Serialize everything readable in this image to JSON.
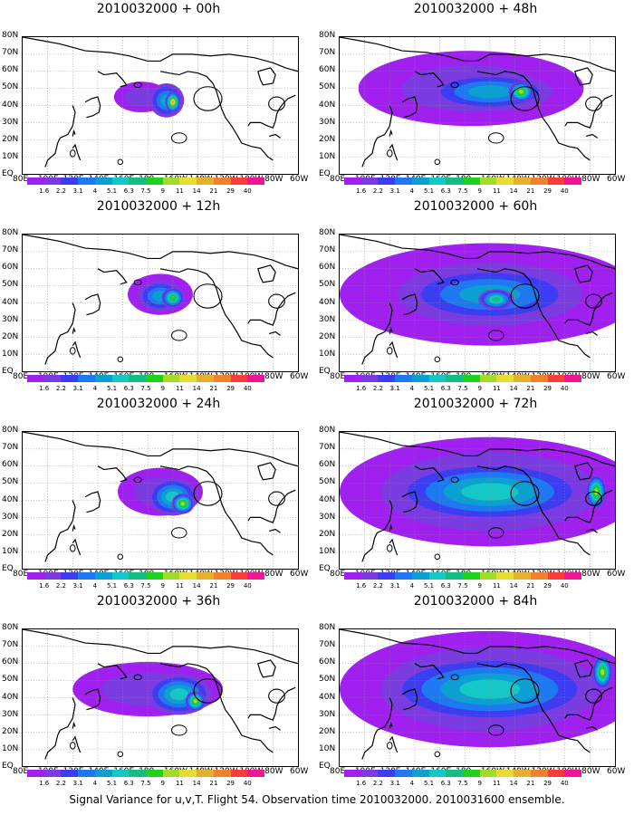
{
  "colorbar": {
    "labels": [
      "1.6",
      "2.2",
      "3.1",
      "4",
      "5.1",
      "6.3",
      "7.5",
      "9",
      "11",
      "14",
      "21",
      "29",
      "40"
    ],
    "colors": [
      "#a020f0",
      "#7a3be0",
      "#3c3cf0",
      "#1e78f0",
      "#0aa0d2",
      "#14c8c8",
      "#14be82",
      "#1ed21e",
      "#a0dc28",
      "#e6dc32",
      "#e6af2d",
      "#f0822d",
      "#fa3c3c",
      "#f01496"
    ]
  },
  "axes": {
    "ylabels": [
      "80N",
      "70N",
      "60N",
      "50N",
      "40N",
      "30N",
      "20N",
      "10N",
      "EQ"
    ],
    "xlabels": [
      "80E",
      "100E",
      "120E",
      "140E",
      "160E",
      "180",
      "160W",
      "140W",
      "120W",
      "100W",
      "80W",
      "60W"
    ]
  },
  "caption": "Signal Variance for u,v,T. Flight 54. Observation time 2010032000. 2010031600 ensemble.",
  "chart_data": [
    {
      "type": "heatmap",
      "title": "2010032000 + 00h",
      "variable": "Signal Variance",
      "blobs": [
        {
          "lon": 175,
          "lat": 45,
          "w": 22,
          "h": 9,
          "level": 1
        },
        {
          "lon": 195,
          "lat": 43,
          "w": 14,
          "h": 10,
          "level": 3
        },
        {
          "lon": 200,
          "lat": 42,
          "w": 6,
          "h": 6,
          "level": 9
        }
      ]
    },
    {
      "type": "heatmap",
      "title": "2010032000 + 12h",
      "variable": "Signal Variance",
      "blobs": [
        {
          "lon": 190,
          "lat": 45,
          "w": 26,
          "h": 12,
          "level": 1
        },
        {
          "lon": 190,
          "lat": 44,
          "w": 18,
          "h": 9,
          "level": 3
        },
        {
          "lon": 200,
          "lat": 43,
          "w": 9,
          "h": 6,
          "level": 6
        }
      ]
    },
    {
      "type": "heatmap",
      "title": "2010032000 + 24h",
      "variable": "Signal Variance",
      "blobs": [
        {
          "lon": 190,
          "lat": 45,
          "w": 34,
          "h": 14,
          "level": 1
        },
        {
          "lon": 200,
          "lat": 42,
          "w": 20,
          "h": 11,
          "level": 4
        },
        {
          "lon": 208,
          "lat": 38,
          "w": 9,
          "h": 6,
          "level": 7
        }
      ]
    },
    {
      "type": "heatmap",
      "title": "2010032000 + 36h",
      "variable": "Signal Variance",
      "blobs": [
        {
          "lon": 180,
          "lat": 45,
          "w": 60,
          "h": 16,
          "level": 1
        },
        {
          "lon": 205,
          "lat": 42,
          "w": 26,
          "h": 12,
          "level": 4
        },
        {
          "lon": 218,
          "lat": 38,
          "w": 8,
          "h": 6,
          "level": 7
        }
      ]
    },
    {
      "type": "heatmap",
      "title": "2010032000 + 48h",
      "variable": "Signal Variance",
      "blobs": [
        {
          "lon": 185,
          "lat": 50,
          "w": 90,
          "h": 22,
          "level": 1
        },
        {
          "lon": 200,
          "lat": 48,
          "w": 50,
          "h": 11,
          "level": 3
        },
        {
          "lon": 225,
          "lat": 48,
          "w": 10,
          "h": 6,
          "level": 7
        }
      ]
    },
    {
      "type": "heatmap",
      "title": "2010032000 + 60h",
      "variable": "Signal Variance",
      "blobs": [
        {
          "lon": 200,
          "lat": 45,
          "w": 120,
          "h": 30,
          "level": 1
        },
        {
          "lon": 200,
          "lat": 45,
          "w": 70,
          "h": 16,
          "level": 3
        },
        {
          "lon": 205,
          "lat": 42,
          "w": 14,
          "h": 6,
          "level": 5
        }
      ]
    },
    {
      "type": "heatmap",
      "title": "2010032000 + 72h",
      "variable": "Signal Variance",
      "blobs": [
        {
          "lon": 200,
          "lat": 45,
          "w": 120,
          "h": 32,
          "level": 2
        },
        {
          "lon": 200,
          "lat": 45,
          "w": 80,
          "h": 18,
          "level": 4
        },
        {
          "lon": 285,
          "lat": 45,
          "w": 8,
          "h": 10,
          "level": 7
        }
      ]
    },
    {
      "type": "heatmap",
      "title": "2010032000 + 84h",
      "variable": "Signal Variance",
      "blobs": [
        {
          "lon": 200,
          "lat": 45,
          "w": 120,
          "h": 34,
          "level": 2
        },
        {
          "lon": 200,
          "lat": 45,
          "w": 85,
          "h": 20,
          "level": 4
        },
        {
          "lon": 290,
          "lat": 55,
          "w": 8,
          "h": 10,
          "level": 7
        }
      ]
    }
  ]
}
